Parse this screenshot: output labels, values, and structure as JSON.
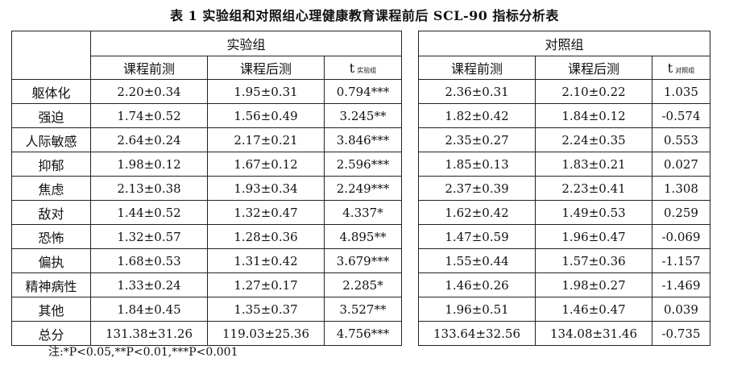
{
  "title": "表 1  实验组和对照组心理健康教育课程前后 SCL-90 指标分析表",
  "groups": {
    "experimental": "实验组",
    "control": "对照组"
  },
  "columns": {
    "pre": "课程前测",
    "post": "课程后测",
    "t": "t",
    "t_sub_exp": "实验组",
    "t_sub_ctrl": "对照组"
  },
  "rows": [
    {
      "label": "躯体化",
      "e_pre": "2.20±0.34",
      "e_post": "1.95±0.31",
      "e_t": "0.794***",
      "c_pre": "2.36±0.31",
      "c_post": "2.10±0.22",
      "c_t": "1.035"
    },
    {
      "label": "强迫",
      "e_pre": "1.74±0.52",
      "e_post": "1.56±0.49",
      "e_t": "3.245**",
      "c_pre": "1.82±0.42",
      "c_post": "1.84±0.12",
      "c_t": "-0.574"
    },
    {
      "label": "人际敏感",
      "e_pre": "2.64±0.24",
      "e_post": "2.17±0.21",
      "e_t": "3.846***",
      "c_pre": "2.35±0.27",
      "c_post": "2.24±0.35",
      "c_t": "0.553"
    },
    {
      "label": "抑郁",
      "e_pre": "1.98±0.12",
      "e_post": "1.67±0.12",
      "e_t": "2.596***",
      "c_pre": "1.85±0.13",
      "c_post": "1.83±0.21",
      "c_t": "0.027"
    },
    {
      "label": "焦虑",
      "e_pre": "2.13±0.38",
      "e_post": "1.93±0.34",
      "e_t": "2.249***",
      "c_pre": "2.37±0.39",
      "c_post": "2.23±0.41",
      "c_t": "1.308"
    },
    {
      "label": "敌对",
      "e_pre": "1.44±0.52",
      "e_post": "1.32±0.47",
      "e_t": "4.337*",
      "c_pre": "1.62±0.42",
      "c_post": "1.49±0.53",
      "c_t": "0.259"
    },
    {
      "label": "恐怖",
      "e_pre": "1.32±0.57",
      "e_post": "1.28±0.36",
      "e_t": "4.895**",
      "c_pre": "1.47±0.59",
      "c_post": "1.96±0.47",
      "c_t": "-0.069"
    },
    {
      "label": "偏执",
      "e_pre": "1.68±0.53",
      "e_post": "1.31±0.42",
      "e_t": "3.679***",
      "c_pre": "1.55±0.44",
      "c_post": "1.57±0.36",
      "c_t": "-1.157"
    },
    {
      "label": "精神病性",
      "e_pre": "1.33±0.24",
      "e_post": "1.27±0.17",
      "e_t": "2.285*",
      "c_pre": "1.46±0.26",
      "c_post": "1.98±0.27",
      "c_t": "-1.469"
    },
    {
      "label": "其他",
      "e_pre": "1.84±0.45",
      "e_post": "1.35±0.37",
      "e_t": "3.527**",
      "c_pre": "1.96±0.51",
      "c_post": "1.46±0.47",
      "c_t": "0.039"
    },
    {
      "label": "总分",
      "e_pre": "131.38±31.26",
      "e_post": "119.03±25.36",
      "e_t": "4.756***",
      "c_pre": "133.64±32.56",
      "c_post": "134.08±31.46",
      "c_t": "-0.735"
    }
  ],
  "note": "注:*P<0.05,**P<0.01,***P<0.001"
}
